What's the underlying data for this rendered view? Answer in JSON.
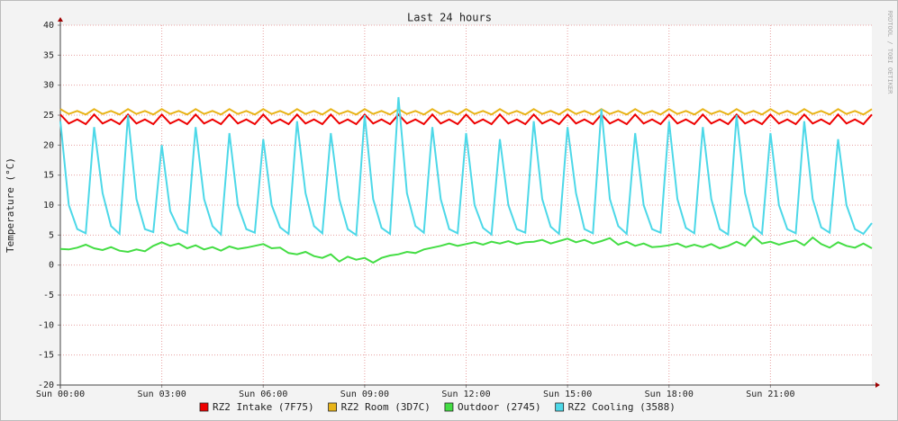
{
  "chart_data": {
    "type": "line",
    "title": "Last 24 hours",
    "y_label": "Temperature (°C)",
    "watermark": "RRDTOOL / TOBI OETIKER",
    "xlim": [
      0,
      24
    ],
    "ylim": [
      -20,
      40
    ],
    "yticks": [
      -20,
      -15,
      -10,
      -5,
      0,
      5,
      10,
      15,
      20,
      25,
      30,
      35,
      40
    ],
    "xticks": [
      {
        "value": 0,
        "label": "Sun 00:00"
      },
      {
        "value": 3,
        "label": "Sun 03:00"
      },
      {
        "value": 6,
        "label": "Sun 06:00"
      },
      {
        "value": 9,
        "label": "Sun 09:00"
      },
      {
        "value": 12,
        "label": "Sun 12:00"
      },
      {
        "value": 15,
        "label": "Sun 15:00"
      },
      {
        "value": 18,
        "label": "Sun 18:00"
      },
      {
        "value": 21,
        "label": "Sun 21:00"
      }
    ],
    "grid": true,
    "x": [
      0,
      0.25,
      0.5,
      0.75,
      1,
      1.25,
      1.5,
      1.75,
      2,
      2.25,
      2.5,
      2.75,
      3,
      3.25,
      3.5,
      3.75,
      4,
      4.25,
      4.5,
      4.75,
      5,
      5.25,
      5.5,
      5.75,
      6,
      6.25,
      6.5,
      6.75,
      7,
      7.25,
      7.5,
      7.75,
      8,
      8.25,
      8.5,
      8.75,
      9,
      9.25,
      9.5,
      9.75,
      10,
      10.25,
      10.5,
      10.75,
      11,
      11.25,
      11.5,
      11.75,
      12,
      12.25,
      12.5,
      12.75,
      13,
      13.25,
      13.5,
      13.75,
      14,
      14.25,
      14.5,
      14.75,
      15,
      15.25,
      15.5,
      15.75,
      16,
      16.25,
      16.5,
      16.75,
      17,
      17.25,
      17.5,
      17.75,
      18,
      18.25,
      18.5,
      18.75,
      19,
      19.25,
      19.5,
      19.75,
      20,
      20.25,
      20.5,
      20.75,
      21,
      21.25,
      21.5,
      21.75,
      22,
      22.25,
      22.5,
      22.75,
      23,
      23.25,
      23.5,
      23.75,
      24
    ],
    "series": [
      {
        "name": "RZ2 Intake (7F75)",
        "color": "#ee0000",
        "values": [
          25.1,
          23.6,
          24.3,
          23.5,
          25.1,
          23.6,
          24.3,
          23.5,
          25.1,
          23.6,
          24.3,
          23.5,
          25.1,
          23.6,
          24.3,
          23.5,
          25.1,
          23.6,
          24.3,
          23.5,
          25.1,
          23.6,
          24.3,
          23.5,
          25.1,
          23.6,
          24.3,
          23.5,
          25.1,
          23.6,
          24.3,
          23.5,
          25.1,
          23.6,
          24.3,
          23.5,
          25.1,
          23.6,
          24.3,
          23.5,
          25.1,
          23.6,
          24.3,
          23.5,
          25.1,
          23.6,
          24.3,
          23.5,
          25.1,
          23.6,
          24.3,
          23.5,
          25.1,
          23.6,
          24.3,
          23.5,
          25.1,
          23.6,
          24.3,
          23.5,
          25.1,
          23.6,
          24.3,
          23.5,
          25.1,
          23.6,
          24.3,
          23.5,
          25.1,
          23.6,
          24.3,
          23.5,
          25.1,
          23.6,
          24.3,
          23.5,
          25.1,
          23.6,
          24.3,
          23.5,
          25.1,
          23.6,
          24.3,
          23.5,
          25.1,
          23.6,
          24.3,
          23.5,
          25.1,
          23.6,
          24.3,
          23.5,
          25.1,
          23.6,
          24.3,
          23.5,
          25.1
        ]
      },
      {
        "name": "RZ2 Room (3D7C)",
        "color": "#e8b418",
        "values": [
          26.0,
          25.2,
          25.7,
          25.1,
          26.0,
          25.2,
          25.7,
          25.1,
          26.0,
          25.2,
          25.7,
          25.1,
          26.0,
          25.2,
          25.7,
          25.1,
          26.0,
          25.2,
          25.7,
          25.1,
          26.0,
          25.2,
          25.7,
          25.1,
          26.0,
          25.2,
          25.7,
          25.1,
          26.0,
          25.2,
          25.7,
          25.1,
          26.0,
          25.2,
          25.7,
          25.1,
          26.0,
          25.2,
          25.7,
          25.1,
          26.0,
          25.2,
          25.7,
          25.1,
          26.0,
          25.2,
          25.7,
          25.1,
          26.0,
          25.2,
          25.7,
          25.1,
          26.0,
          25.2,
          25.7,
          25.1,
          26.0,
          25.2,
          25.7,
          25.1,
          26.0,
          25.2,
          25.7,
          25.1,
          26.0,
          25.2,
          25.7,
          25.1,
          26.0,
          25.2,
          25.7,
          25.1,
          26.0,
          25.2,
          25.7,
          25.1,
          26.0,
          25.2,
          25.7,
          25.1,
          26.0,
          25.2,
          25.7,
          25.1,
          26.0,
          25.2,
          25.7,
          25.1,
          26.0,
          25.2,
          25.7,
          25.1,
          26.0,
          25.2,
          25.7,
          25.1,
          26.0
        ]
      },
      {
        "name": "Outdoor (2745)",
        "color": "#44dd44",
        "values": [
          2.7,
          2.6,
          2.9,
          3.4,
          2.8,
          2.5,
          3.0,
          2.4,
          2.2,
          2.6,
          2.3,
          3.2,
          3.8,
          3.2,
          3.6,
          2.8,
          3.3,
          2.6,
          3.0,
          2.4,
          3.1,
          2.7,
          2.9,
          3.2,
          3.5,
          2.8,
          2.9,
          2.0,
          1.8,
          2.2,
          1.5,
          1.2,
          1.8,
          0.6,
          1.4,
          0.9,
          1.2,
          0.4,
          1.2,
          1.6,
          1.8,
          2.2,
          2.0,
          2.6,
          2.9,
          3.2,
          3.6,
          3.2,
          3.5,
          3.8,
          3.4,
          3.9,
          3.6,
          4.0,
          3.5,
          3.8,
          3.9,
          4.2,
          3.6,
          4.0,
          4.4,
          3.8,
          4.2,
          3.6,
          4.0,
          4.5,
          3.4,
          3.9,
          3.2,
          3.6,
          3.0,
          3.1,
          3.3,
          3.6,
          3.0,
          3.4,
          3.0,
          3.5,
          2.8,
          3.2,
          3.9,
          3.2,
          4.8,
          3.6,
          3.9,
          3.4,
          3.8,
          4.1,
          3.3,
          4.6,
          3.5,
          2.9,
          3.8,
          3.2,
          2.9,
          3.6,
          2.8
        ]
      },
      {
        "name": "RZ2 Cooling (3588)",
        "color": "#4dd8e8",
        "values": [
          24,
          10,
          6,
          5.3,
          23,
          12,
          6.5,
          5.2,
          25,
          11,
          6,
          5.5,
          20,
          9,
          6,
          5.3,
          23,
          11,
          6.5,
          5.1,
          22,
          10,
          6,
          5.4,
          21,
          10,
          6.3,
          5.2,
          24,
          12,
          6.5,
          5.3,
          22,
          11,
          6,
          5.0,
          25,
          11,
          6.2,
          5.2,
          28,
          12,
          6.5,
          5.4,
          23,
          11,
          6,
          5.3,
          22,
          10,
          6.2,
          5.1,
          21,
          10,
          6,
          5.4,
          24,
          11,
          6.4,
          5.2,
          23,
          12,
          6,
          5.3,
          26,
          11,
          6.5,
          5.2,
          22,
          10,
          6,
          5.4,
          24,
          11,
          6.2,
          5.3,
          23,
          11,
          6,
          5.1,
          25,
          12,
          6.4,
          5.2,
          22,
          10,
          6,
          5.3,
          24,
          11,
          6.3,
          5.4,
          21,
          10,
          6,
          5.2,
          7
        ]
      }
    ]
  }
}
